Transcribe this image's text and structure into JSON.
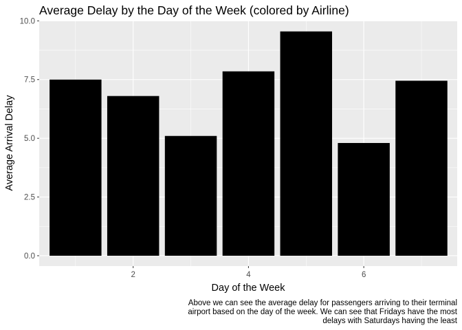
{
  "chart_data": {
    "type": "bar",
    "title": "Average Delay by the Day of the Week (colored by Airline)",
    "xlabel": "Day of the Week",
    "ylabel": "Average Arrival Delay",
    "x": [
      1,
      2,
      3,
      4,
      5,
      6,
      7
    ],
    "values": [
      7.5,
      6.8,
      5.1,
      7.85,
      9.55,
      4.8,
      7.45
    ],
    "xlim": [
      0.5,
      7.5
    ],
    "ylim": [
      0,
      10
    ],
    "x_ticks": [
      2,
      4,
      6
    ],
    "x_tick_labels": [
      "2",
      "4",
      "6"
    ],
    "y_ticks": [
      0,
      2.5,
      5,
      7.5,
      10
    ],
    "y_tick_labels": [
      "0.0",
      "2.5",
      "5.0",
      "7.5",
      "10.0"
    ],
    "grid": true,
    "bar_color": "#000000",
    "panel_background": "#ebebeb",
    "gridline_color": "#ffffff",
    "caption_lines": [
      "Above we can see the average delay for passengers arriving to their terminal",
      "airport based on the day of the week. We can see that Fridays have the most",
      "delays with Saturdays having the least"
    ]
  }
}
